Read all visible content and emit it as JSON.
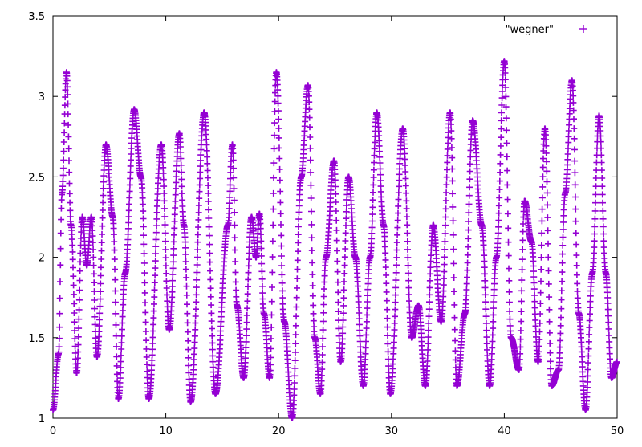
{
  "chart_data": {
    "type": "scatter",
    "title": "",
    "xlabel": "",
    "ylabel": "",
    "xlim": [
      0,
      50
    ],
    "ylim": [
      1,
      3.5
    ],
    "xticks": [
      "0",
      "10",
      "20",
      "30",
      "40",
      "50"
    ],
    "yticks": [
      "1",
      "1.5",
      "2",
      "2.5",
      "3",
      "3.5"
    ],
    "grid": false,
    "legend_placement": "top-right",
    "marker": "+",
    "series": [
      {
        "name": "\"wegner\"",
        "color": "#9400d3",
        "keypoints": [
          [
            0,
            1.05
          ],
          [
            0.5,
            1.4
          ],
          [
            0.8,
            2.4
          ],
          [
            1.2,
            3.15
          ],
          [
            1.6,
            2.2
          ],
          [
            2.1,
            1.28
          ],
          [
            2.6,
            2.25
          ],
          [
            3.0,
            1.95
          ],
          [
            3.4,
            2.25
          ],
          [
            3.9,
            1.38
          ],
          [
            4.7,
            2.7
          ],
          [
            5.3,
            2.25
          ],
          [
            5.8,
            1.12
          ],
          [
            6.4,
            1.9
          ],
          [
            7.2,
            2.92
          ],
          [
            7.8,
            2.5
          ],
          [
            8.5,
            1.12
          ],
          [
            9.6,
            2.7
          ],
          [
            10.3,
            1.55
          ],
          [
            11.2,
            2.77
          ],
          [
            11.6,
            2.2
          ],
          [
            12.2,
            1.1
          ],
          [
            13.4,
            2.9
          ],
          [
            14.4,
            1.15
          ],
          [
            15.5,
            2.2
          ],
          [
            15.9,
            2.7
          ],
          [
            16.3,
            1.7
          ],
          [
            16.9,
            1.25
          ],
          [
            17.6,
            2.25
          ],
          [
            18.0,
            2.0
          ],
          [
            18.3,
            2.27
          ],
          [
            18.7,
            1.65
          ],
          [
            19.2,
            1.25
          ],
          [
            19.8,
            3.15
          ],
          [
            20.5,
            1.6
          ],
          [
            21.2,
            1.0
          ],
          [
            22.0,
            2.5
          ],
          [
            22.6,
            3.07
          ],
          [
            23.2,
            1.5
          ],
          [
            23.7,
            1.15
          ],
          [
            24.2,
            2.0
          ],
          [
            24.9,
            2.6
          ],
          [
            25.5,
            1.35
          ],
          [
            26.2,
            2.5
          ],
          [
            26.8,
            2.0
          ],
          [
            27.5,
            1.2
          ],
          [
            28.1,
            2.0
          ],
          [
            28.7,
            2.9
          ],
          [
            29.3,
            2.2
          ],
          [
            29.9,
            1.15
          ],
          [
            31.0,
            2.8
          ],
          [
            31.8,
            1.5
          ],
          [
            32.4,
            1.7
          ],
          [
            33.0,
            1.2
          ],
          [
            33.7,
            2.2
          ],
          [
            34.4,
            1.6
          ],
          [
            35.2,
            2.9
          ],
          [
            35.8,
            1.2
          ],
          [
            36.5,
            1.65
          ],
          [
            37.2,
            2.85
          ],
          [
            38.0,
            2.2
          ],
          [
            38.7,
            1.2
          ],
          [
            39.3,
            2.0
          ],
          [
            40.0,
            3.22
          ],
          [
            40.6,
            1.5
          ],
          [
            41.3,
            1.3
          ],
          [
            41.8,
            2.35
          ],
          [
            42.4,
            2.1
          ],
          [
            43.0,
            1.35
          ],
          [
            43.6,
            2.8
          ],
          [
            44.2,
            1.2
          ],
          [
            44.8,
            1.3
          ],
          [
            45.4,
            2.4
          ],
          [
            46.0,
            3.1
          ],
          [
            46.6,
            1.65
          ],
          [
            47.2,
            1.05
          ],
          [
            47.8,
            1.9
          ],
          [
            48.4,
            2.88
          ],
          [
            49.0,
            1.9
          ],
          [
            49.5,
            1.25
          ],
          [
            50.0,
            1.35
          ]
        ]
      }
    ]
  }
}
